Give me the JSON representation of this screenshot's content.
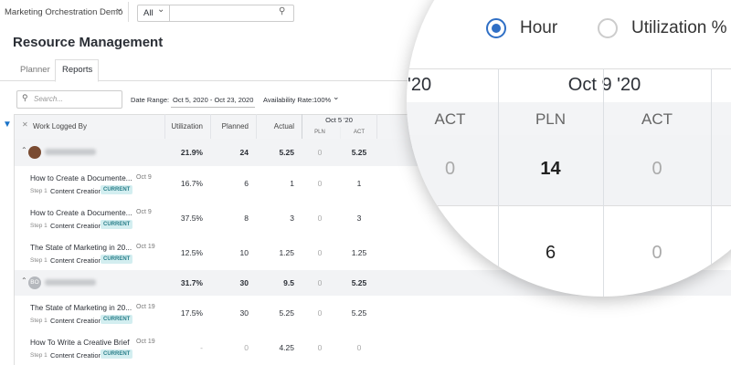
{
  "top_bar": {
    "workspace": "Marketing Orchestration Demo",
    "filter": "All"
  },
  "header": {
    "title": "Resource Management"
  },
  "tabs": [
    "Planner",
    "Reports"
  ],
  "toolbar": {
    "search_placeholder": "Search...",
    "date_range_label": "Date Range:",
    "date_range": "Oct 5, 2020 - Oct 23, 2020",
    "availability_label": "Availability Rate:",
    "availability": "100%"
  },
  "table": {
    "columns": [
      "Work Logged By",
      "Utilization",
      "Planned",
      "Actual"
    ],
    "date_group": "Oct 5 '20",
    "sub_columns": [
      "PLN",
      "ACT"
    ],
    "rows": [
      {
        "kind": "group",
        "utilization": "21.9%",
        "planned": "24",
        "actual": "5.25",
        "pln": "0",
        "act": "5.25"
      },
      {
        "kind": "task",
        "title": "How to Create a Documente...",
        "date": "Oct 9",
        "step": "Step 1",
        "stage": "Content Creation",
        "status": "CURRENT",
        "utilization": "16.7%",
        "planned": "6",
        "actual": "1",
        "pln": "0",
        "act": "1"
      },
      {
        "kind": "task",
        "title": "How to Create a Documente...",
        "date": "Oct 9",
        "step": "Step 1",
        "stage": "Content Creation",
        "status": "CURRENT",
        "utilization": "37.5%",
        "planned": "8",
        "actual": "3",
        "pln": "0",
        "act": "3"
      },
      {
        "kind": "task",
        "title": "The State of Marketing in 20...",
        "date": "Oct 19",
        "step": "Step 1",
        "stage": "Content Creation",
        "status": "CURRENT",
        "utilization": "12.5%",
        "planned": "10",
        "actual": "1.25",
        "pln": "0",
        "act": "1.25"
      },
      {
        "kind": "group",
        "initials": "BO",
        "utilization": "31.7%",
        "planned": "30",
        "actual": "9.5",
        "pln": "0",
        "act": "5.25"
      },
      {
        "kind": "task",
        "title": "The State of Marketing in 20...",
        "date": "Oct 19",
        "step": "Step 1",
        "stage": "Content Creation",
        "status": "CURRENT",
        "utilization": "17.5%",
        "planned": "30",
        "actual": "5.25",
        "pln": "0",
        "act": "5.25"
      },
      {
        "kind": "task",
        "title": "How To Write a Creative Brief",
        "date": "Oct 19",
        "step": "Step 1",
        "stage": "Content Creation",
        "status": "CURRENT",
        "utilization": "-",
        "planned": "0",
        "actual": "4.25",
        "pln": "0",
        "act": "0"
      }
    ]
  },
  "magnifier": {
    "options": [
      "Hour",
      "Utilization %"
    ],
    "date_partial": "'20",
    "date": "Oct 9 '20",
    "sub_columns": [
      "ACT",
      "PLN",
      "ACT"
    ],
    "rows": [
      {
        "prev_act": "0",
        "pln": "14",
        "act": "0"
      },
      {
        "pln": "6",
        "act": "0"
      }
    ]
  }
}
